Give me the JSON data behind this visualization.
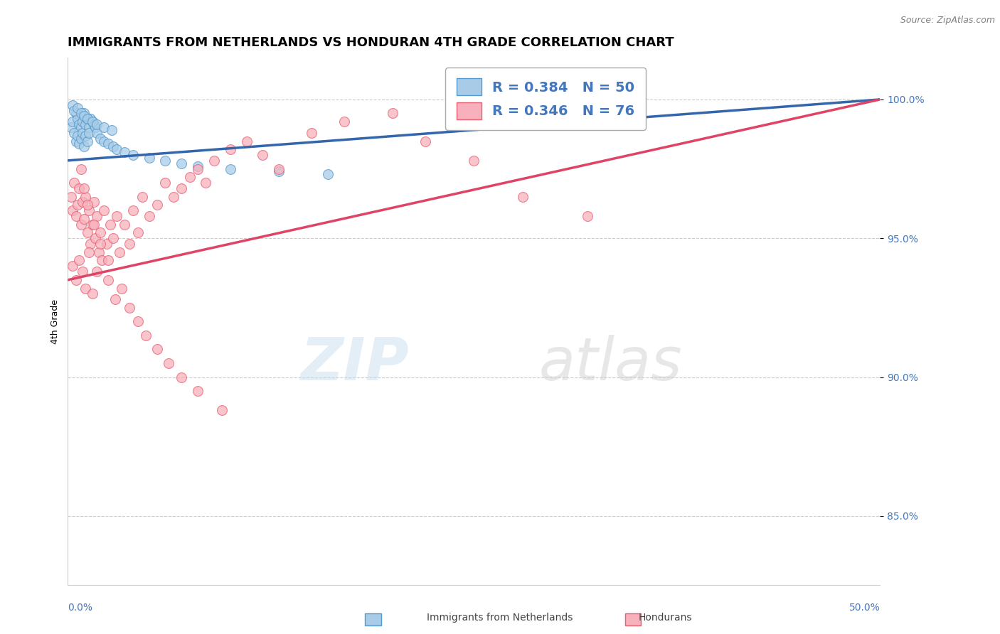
{
  "title": "IMMIGRANTS FROM NETHERLANDS VS HONDURAN 4TH GRADE CORRELATION CHART",
  "source": "Source: ZipAtlas.com",
  "ylabel": "4th Grade",
  "yaxis_labels": [
    "85.0%",
    "90.0%",
    "95.0%",
    "100.0%"
  ],
  "yaxis_values": [
    0.85,
    0.9,
    0.95,
    1.0
  ],
  "xlim": [
    0.0,
    0.5
  ],
  "ylim": [
    0.825,
    1.015
  ],
  "legend_line1": "R = 0.384   N = 50",
  "legend_line2": "R = 0.346   N = 76",
  "legend_label1": "Immigrants from Netherlands",
  "legend_label2": "Hondurans",
  "blue_scatter_x": [
    0.002,
    0.003,
    0.004,
    0.005,
    0.005,
    0.006,
    0.006,
    0.007,
    0.007,
    0.008,
    0.008,
    0.009,
    0.009,
    0.01,
    0.01,
    0.011,
    0.011,
    0.012,
    0.012,
    0.013,
    0.013,
    0.014,
    0.015,
    0.016,
    0.017,
    0.018,
    0.02,
    0.022,
    0.025,
    0.028,
    0.03,
    0.035,
    0.04,
    0.05,
    0.06,
    0.07,
    0.08,
    0.1,
    0.13,
    0.16,
    0.003,
    0.004,
    0.006,
    0.008,
    0.01,
    0.012,
    0.015,
    0.018,
    0.022,
    0.027
  ],
  "blue_scatter_y": [
    0.99,
    0.992,
    0.988,
    0.995,
    0.985,
    0.993,
    0.987,
    0.991,
    0.984,
    0.99,
    0.986,
    0.992,
    0.988,
    0.995,
    0.983,
    0.991,
    0.987,
    0.993,
    0.985,
    0.99,
    0.988,
    0.993,
    0.992,
    0.991,
    0.99,
    0.988,
    0.986,
    0.985,
    0.984,
    0.983,
    0.982,
    0.981,
    0.98,
    0.979,
    0.978,
    0.977,
    0.976,
    0.975,
    0.974,
    0.973,
    0.998,
    0.996,
    0.997,
    0.995,
    0.994,
    0.993,
    0.992,
    0.991,
    0.99,
    0.989
  ],
  "pink_scatter_x": [
    0.002,
    0.003,
    0.004,
    0.005,
    0.006,
    0.007,
    0.008,
    0.009,
    0.01,
    0.011,
    0.012,
    0.013,
    0.014,
    0.015,
    0.016,
    0.017,
    0.018,
    0.019,
    0.02,
    0.022,
    0.024,
    0.026,
    0.028,
    0.03,
    0.032,
    0.035,
    0.038,
    0.04,
    0.043,
    0.046,
    0.05,
    0.055,
    0.06,
    0.065,
    0.07,
    0.075,
    0.08,
    0.085,
    0.09,
    0.1,
    0.11,
    0.12,
    0.13,
    0.15,
    0.17,
    0.2,
    0.22,
    0.25,
    0.28,
    0.32,
    0.003,
    0.005,
    0.007,
    0.009,
    0.011,
    0.013,
    0.015,
    0.018,
    0.021,
    0.025,
    0.029,
    0.033,
    0.038,
    0.043,
    0.048,
    0.055,
    0.062,
    0.07,
    0.08,
    0.095,
    0.008,
    0.01,
    0.012,
    0.016,
    0.02,
    0.025
  ],
  "pink_scatter_y": [
    0.965,
    0.96,
    0.97,
    0.958,
    0.962,
    0.968,
    0.955,
    0.963,
    0.957,
    0.965,
    0.952,
    0.96,
    0.948,
    0.955,
    0.963,
    0.95,
    0.958,
    0.945,
    0.952,
    0.96,
    0.948,
    0.955,
    0.95,
    0.958,
    0.945,
    0.955,
    0.948,
    0.96,
    0.952,
    0.965,
    0.958,
    0.962,
    0.97,
    0.965,
    0.968,
    0.972,
    0.975,
    0.97,
    0.978,
    0.982,
    0.985,
    0.98,
    0.975,
    0.988,
    0.992,
    0.995,
    0.985,
    0.978,
    0.965,
    0.958,
    0.94,
    0.935,
    0.942,
    0.938,
    0.932,
    0.945,
    0.93,
    0.938,
    0.942,
    0.935,
    0.928,
    0.932,
    0.925,
    0.92,
    0.915,
    0.91,
    0.905,
    0.9,
    0.895,
    0.888,
    0.975,
    0.968,
    0.962,
    0.955,
    0.948,
    0.942
  ],
  "blue_line_x": [
    0.0,
    0.5
  ],
  "blue_line_y": [
    0.978,
    1.0
  ],
  "pink_line_x": [
    0.0,
    0.5
  ],
  "pink_line_y": [
    0.935,
    1.0
  ],
  "blue_scatter_color": "#a8cce8",
  "blue_edge_color": "#5599cc",
  "pink_scatter_color": "#f8b0bc",
  "pink_edge_color": "#e86070",
  "blue_line_color": "#3366aa",
  "pink_line_color": "#dd4466",
  "grid_color": "#cccccc",
  "text_color_blue": "#4477bb",
  "text_color_pink": "#dd4466",
  "background_color": "#ffffff",
  "title_fontsize": 13,
  "axis_label_fontsize": 9,
  "tick_fontsize": 10,
  "legend_fontsize": 14
}
